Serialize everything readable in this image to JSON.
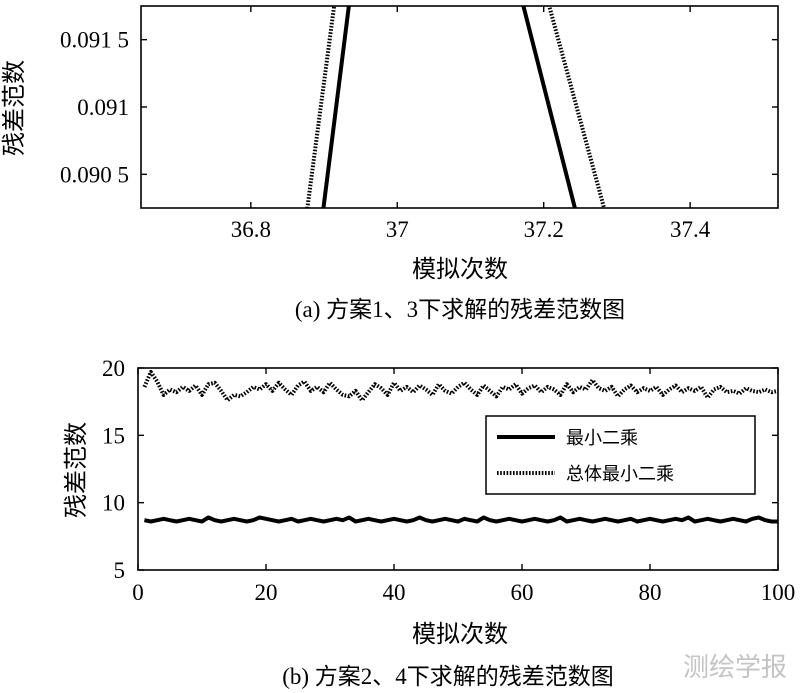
{
  "chart_data": [
    {
      "type": "line",
      "ylabel": "残差范数",
      "xlabel": "模拟次数",
      "caption": "(a) 方案1、3下求解的残差范数图",
      "xlim": [
        36.65,
        37.52
      ],
      "ylim": [
        0.09025,
        0.09175
      ],
      "xticks": [
        "36.8",
        "37",
        "37.2",
        "37.4"
      ],
      "xtick_values": [
        36.8,
        37.0,
        37.2,
        37.4
      ],
      "yticks": [
        "0.090 5",
        "0.091",
        "0.091 5"
      ],
      "ytick_values": [
        0.0905,
        0.091,
        0.0915
      ],
      "grid": false,
      "series": [
        {
          "name": "最小二乘",
          "style": "solid",
          "x": [
            36.898,
            36.935,
            37.17,
            37.245
          ],
          "y": [
            0.0902,
            0.0918,
            0.0918,
            0.0902
          ]
        },
        {
          "name": "总体最小二乘",
          "style": "dotted",
          "x": [
            36.876,
            36.915,
            37.205,
            37.285
          ],
          "y": [
            0.0902,
            0.0918,
            0.0918,
            0.0902
          ]
        }
      ]
    },
    {
      "type": "line",
      "ylabel": "残差范数",
      "xlabel": "模拟次数",
      "caption": "(b) 方案2、4下求解的残差范数图",
      "xlim": [
        0,
        100
      ],
      "ylim": [
        5,
        20
      ],
      "xticks": [
        "0",
        "20",
        "40",
        "60",
        "80",
        "100"
      ],
      "xtick_values": [
        0,
        20,
        40,
        60,
        80,
        100
      ],
      "yticks": [
        "5",
        "10",
        "15",
        "20"
      ],
      "ytick_values": [
        5,
        10,
        15,
        20
      ],
      "grid": false,
      "legend_position": "right",
      "series": [
        {
          "name": "最小二乘",
          "style": "solid",
          "x": [
            1,
            2,
            3,
            4,
            5,
            6,
            7,
            8,
            9,
            10,
            11,
            12,
            13,
            14,
            15,
            16,
            17,
            18,
            19,
            20,
            21,
            22,
            23,
            24,
            25,
            26,
            27,
            28,
            29,
            30,
            31,
            32,
            33,
            34,
            35,
            36,
            37,
            38,
            39,
            40,
            41,
            42,
            43,
            44,
            45,
            46,
            47,
            48,
            49,
            50,
            51,
            52,
            53,
            54,
            55,
            56,
            57,
            58,
            59,
            60,
            61,
            62,
            63,
            64,
            65,
            66,
            67,
            68,
            69,
            70,
            71,
            72,
            73,
            74,
            75,
            76,
            77,
            78,
            79,
            80,
            81,
            82,
            83,
            84,
            85,
            86,
            87,
            88,
            89,
            90,
            91,
            92,
            93,
            94,
            95,
            96,
            97,
            98,
            99,
            100
          ],
          "y": [
            8.7,
            8.6,
            8.7,
            8.8,
            8.7,
            8.6,
            8.7,
            8.8,
            8.7,
            8.6,
            8.9,
            8.7,
            8.6,
            8.7,
            8.8,
            8.7,
            8.6,
            8.7,
            8.9,
            8.8,
            8.7,
            8.6,
            8.7,
            8.8,
            8.6,
            8.7,
            8.8,
            8.7,
            8.6,
            8.7,
            8.8,
            8.7,
            8.9,
            8.6,
            8.7,
            8.8,
            8.7,
            8.6,
            8.7,
            8.8,
            8.7,
            8.6,
            8.7,
            8.9,
            8.7,
            8.6,
            8.7,
            8.8,
            8.7,
            8.6,
            8.8,
            8.7,
            8.6,
            8.9,
            8.7,
            8.6,
            8.7,
            8.8,
            8.7,
            8.6,
            8.7,
            8.8,
            8.7,
            8.6,
            8.7,
            8.9,
            8.6,
            8.7,
            8.8,
            8.7,
            8.6,
            8.7,
            8.8,
            8.7,
            8.6,
            8.7,
            8.8,
            8.6,
            8.7,
            8.8,
            8.7,
            8.6,
            8.7,
            8.8,
            8.7,
            8.9,
            8.6,
            8.7,
            8.8,
            8.7,
            8.6,
            8.7,
            8.8,
            8.7,
            8.6,
            8.8,
            8.9,
            8.7,
            8.6,
            8.6
          ]
        },
        {
          "name": "总体最小二乘",
          "style": "dotted",
          "x": [
            1,
            2,
            3,
            4,
            5,
            6,
            7,
            8,
            9,
            10,
            11,
            12,
            13,
            14,
            15,
            16,
            17,
            18,
            19,
            20,
            21,
            22,
            23,
            24,
            25,
            26,
            27,
            28,
            29,
            30,
            31,
            32,
            33,
            34,
            35,
            36,
            37,
            38,
            39,
            40,
            41,
            42,
            43,
            44,
            45,
            46,
            47,
            48,
            49,
            50,
            51,
            52,
            53,
            54,
            55,
            56,
            57,
            58,
            59,
            60,
            61,
            62,
            63,
            64,
            65,
            66,
            67,
            68,
            69,
            70,
            71,
            72,
            73,
            74,
            75,
            76,
            77,
            78,
            79,
            80,
            81,
            82,
            83,
            84,
            85,
            86,
            87,
            88,
            89,
            90,
            91,
            92,
            93,
            94,
            95,
            96,
            97,
            98,
            99,
            100
          ],
          "y": [
            18.6,
            19.7,
            19.0,
            18.0,
            18.4,
            18.2,
            18.6,
            18.3,
            18.7,
            18.0,
            18.8,
            18.9,
            18.3,
            17.6,
            18.0,
            17.9,
            18.2,
            18.6,
            18.4,
            18.8,
            18.3,
            18.9,
            18.4,
            18.0,
            18.7,
            19.0,
            18.3,
            18.6,
            18.2,
            18.9,
            18.4,
            18.0,
            17.9,
            18.3,
            17.6,
            18.2,
            18.8,
            18.5,
            18.0,
            18.9,
            18.3,
            18.6,
            18.2,
            18.7,
            18.4,
            18.0,
            18.8,
            18.3,
            18.1,
            18.6,
            18.9,
            18.4,
            18.0,
            18.7,
            18.3,
            17.9,
            18.6,
            18.4,
            18.8,
            18.1,
            18.5,
            18.7,
            18.2,
            18.6,
            18.4,
            18.0,
            18.8,
            18.2,
            18.6,
            18.4,
            19.1,
            18.5,
            18.3,
            18.6,
            17.9,
            18.4,
            18.7,
            18.2,
            18.5,
            18.3,
            18.6,
            18.0,
            18.4,
            18.7,
            18.2,
            18.5,
            18.3,
            18.6,
            17.8,
            18.4,
            18.6,
            18.2,
            18.3,
            18.1,
            18.5,
            18.3,
            18.2,
            18.4,
            18.2,
            18.3
          ]
        }
      ]
    }
  ],
  "watermark": "测绘学报"
}
